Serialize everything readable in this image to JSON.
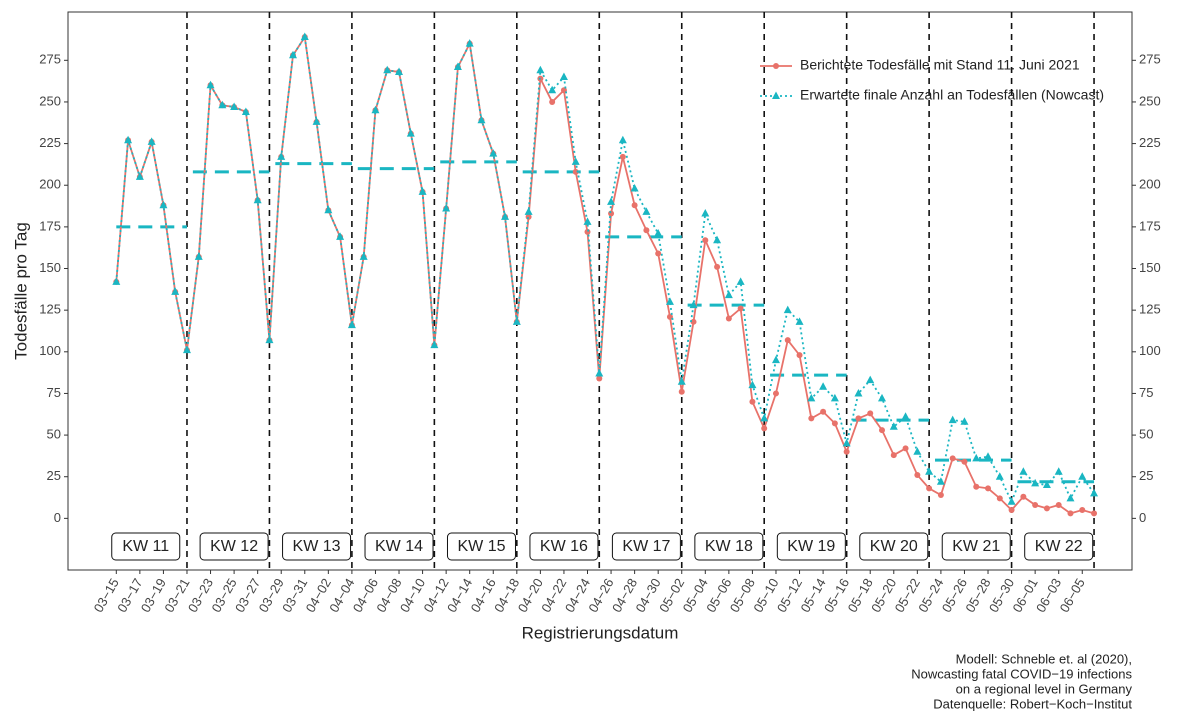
{
  "chart_data": {
    "type": "line",
    "ylabel": "Todesfälle pro Tag",
    "xlabel": "Registrierungsdatum",
    "caption": [
      "Modell: Schneble et. al (2020),",
      "Nowcasting fatal COVID−19 infections",
      "on a regional level in Germany",
      "Datenquelle: Robert−Koch−Institut"
    ],
    "categories": [
      "03−15",
      null,
      "03−17",
      null,
      "03−19",
      null,
      "03−21",
      null,
      "03−23",
      null,
      "03−25",
      null,
      "03−27",
      null,
      "03−29",
      null,
      "03−31",
      null,
      "04−02",
      null,
      "04−04",
      null,
      "04−06",
      null,
      "04−08",
      null,
      "04−10",
      null,
      "04−12",
      null,
      "04−14",
      null,
      "04−16",
      null,
      "04−18",
      null,
      "04−20",
      null,
      "04−22",
      null,
      "04−24",
      null,
      "04−26",
      null,
      "04−28",
      null,
      "04−30",
      null,
      "05−02",
      null,
      "05−04",
      null,
      "05−06",
      null,
      "05−08",
      null,
      "05−10",
      null,
      "05−12",
      null,
      "05−14",
      null,
      "05−16",
      null,
      "05−18",
      null,
      "05−20",
      null,
      "05−22",
      null,
      "05−24",
      null,
      "05−26",
      null,
      "05−28",
      null,
      "05−30",
      null,
      "06−01",
      null,
      "06−03",
      null,
      "06−05",
      null
    ],
    "series": [
      {
        "name": "Berichtete Todesfälle mit Stand 11. Juni 2021",
        "color": "#e8726a",
        "marker": "circle",
        "values": [
          142,
          227,
          205,
          226,
          188,
          136,
          101,
          157,
          260,
          248,
          247,
          244,
          191,
          107,
          217,
          278,
          289,
          238,
          185,
          169,
          116,
          157,
          245,
          269,
          268,
          231,
          196,
          104,
          186,
          271,
          285,
          239,
          219,
          181,
          118,
          181,
          264,
          250,
          257,
          208,
          172,
          84,
          183,
          217,
          188,
          173,
          159,
          121,
          76,
          118,
          167,
          151,
          120,
          126,
          70,
          54,
          75,
          107,
          98,
          60,
          64,
          57,
          40,
          60,
          63,
          53,
          38,
          42,
          26,
          18,
          14,
          36,
          34,
          19,
          18,
          12,
          5,
          13,
          8,
          6,
          8,
          3,
          5,
          3
        ]
      },
      {
        "name": "Erwartete finale Anzahl an Todesfällen (Nowcast)",
        "color": "#1ab6c2",
        "marker": "triangle",
        "values": [
          142,
          227,
          205,
          226,
          188,
          136,
          101,
          157,
          260,
          248,
          247,
          244,
          191,
          107,
          217,
          278,
          289,
          238,
          185,
          169,
          116,
          157,
          245,
          269,
          268,
          231,
          196,
          104,
          186,
          271,
          285,
          239,
          219,
          181,
          118,
          184,
          269,
          257,
          265,
          214,
          178,
          87,
          190,
          227,
          198,
          184,
          171,
          130,
          82,
          128,
          183,
          167,
          134,
          142,
          80,
          60,
          95,
          125,
          118,
          72,
          79,
          72,
          45,
          75,
          83,
          72,
          55,
          61,
          40,
          28,
          22,
          59,
          58,
          36,
          37,
          25,
          10,
          28,
          21,
          20,
          28,
          12,
          25,
          15
        ]
      }
    ],
    "weeks": [
      {
        "label": "KW 11",
        "value": 175
      },
      {
        "label": "KW 12",
        "value": 208
      },
      {
        "label": "KW 13",
        "value": 213
      },
      {
        "label": "KW 14",
        "value": 210
      },
      {
        "label": "KW 15",
        "value": 214
      },
      {
        "label": "KW 16",
        "value": 208
      },
      {
        "label": "KW 17",
        "value": 169
      },
      {
        "label": "KW 18",
        "value": 128
      },
      {
        "label": "KW 19",
        "value": 86
      },
      {
        "label": "KW 20",
        "value": 59
      },
      {
        "label": "KW 21",
        "value": 35
      },
      {
        "label": "KW 22",
        "value": 22
      }
    ],
    "ylim": [
      -31,
      304
    ],
    "yticks": [
      0,
      25,
      50,
      75,
      100,
      125,
      150,
      175,
      200,
      225,
      250,
      275
    ],
    "grid": false,
    "legend": "top-right"
  }
}
